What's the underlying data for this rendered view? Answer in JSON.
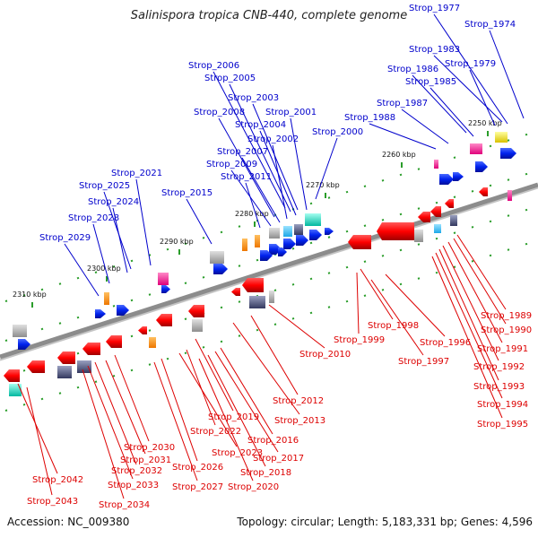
{
  "title": "Salinispora tropica CNB-440, complete genome",
  "accession": "Accession: NC_009380",
  "summary": "Topology: circular; Length: 5,183,331 bp; Genes: 4,596",
  "colors": {
    "upper_labels": "#0000cc",
    "lower_labels": "#dd0000",
    "backbone": "#8c8c8c"
  },
  "ticks": [
    "2250 kbp",
    "2260 kbp",
    "2270 kbp",
    "2280 kbp",
    "2290 kbp",
    "2300 kbp",
    "2310 kbp"
  ],
  "upper_genes": [
    "Strop_1977",
    "Strop_1974",
    "Strop_1983",
    "Strop_1979",
    "Strop_1986",
    "Strop_1985",
    "Strop_1987",
    "Strop_1988",
    "Strop_2006",
    "Strop_2005",
    "Strop_2003",
    "Strop_2008",
    "Strop_2001",
    "Strop_2004",
    "Strop_2000",
    "Strop_2002",
    "Strop_2007",
    "Strop_2009",
    "Strop_2021",
    "Strop_2011",
    "Strop_2025",
    "Strop_2015",
    "Strop_2024",
    "Strop_2028",
    "Strop_2029"
  ],
  "lower_genes": [
    "Strop_1989",
    "Strop_1990",
    "Strop_1998",
    "Strop_1999",
    "Strop_1991",
    "Strop_1996",
    "Strop_2010",
    "Strop_1997",
    "Strop_1992",
    "Strop_1993",
    "Strop_2012",
    "Strop_1994",
    "Strop_2013",
    "Strop_2019",
    "Strop_1995",
    "Strop_2016",
    "Strop_2022",
    "Strop_2030",
    "Strop_2017",
    "Strop_2023",
    "Strop_2031",
    "Strop_2026",
    "Strop_2018",
    "Strop_2032",
    "Strop_2042",
    "Strop_2033",
    "Strop_2027",
    "Strop_2020",
    "Strop_2043",
    "Strop_2034"
  ]
}
